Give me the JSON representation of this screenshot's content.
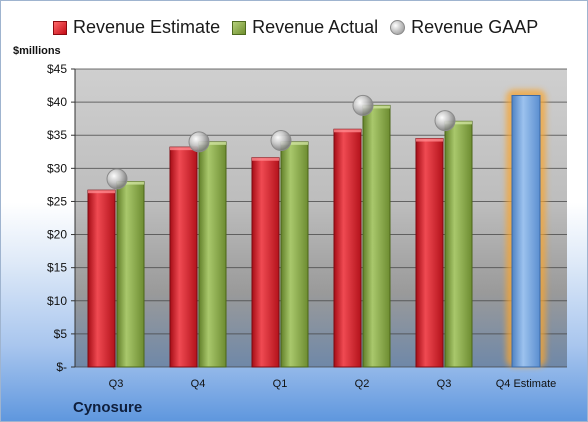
{
  "legend": {
    "estimate": "Revenue Estimate",
    "actual": "Revenue Actual",
    "gaap": "Revenue GAAP"
  },
  "unit_label": "$millions",
  "company": "Cynosure",
  "colors": {
    "estimate": "#d8232f",
    "actual": "#8fb04a",
    "gaap": "#bdbdbd",
    "future_estimate": "#6a9fd8",
    "highlight": "#f7a531"
  },
  "chart_data": {
    "type": "bar",
    "title": "",
    "xlabel": "",
    "ylabel": "$millions",
    "ylim": [
      0,
      45
    ],
    "yticks": [
      "$-",
      "$5",
      "$10",
      "$15",
      "$20",
      "$25",
      "$30",
      "$35",
      "$40",
      "$45"
    ],
    "ytick_values": [
      0,
      5,
      10,
      15,
      20,
      25,
      30,
      35,
      40,
      45
    ],
    "categories": [
      "Q3",
      "Q4",
      "Q1",
      "Q2",
      "Q3",
      "Q4 Estimate"
    ],
    "series": [
      {
        "name": "Revenue Estimate",
        "values": [
          26.7,
          33.2,
          31.6,
          35.9,
          34.5,
          null
        ]
      },
      {
        "name": "Revenue Actual",
        "values": [
          28.0,
          34.0,
          34.0,
          39.5,
          37.1,
          null
        ]
      },
      {
        "name": "Revenue GAAP",
        "values": [
          28.4,
          34.0,
          34.2,
          39.5,
          37.2,
          null
        ]
      }
    ],
    "future_estimate": {
      "category": "Q4 Estimate",
      "value": 41.0
    },
    "grid": true,
    "legend_position": "top"
  }
}
